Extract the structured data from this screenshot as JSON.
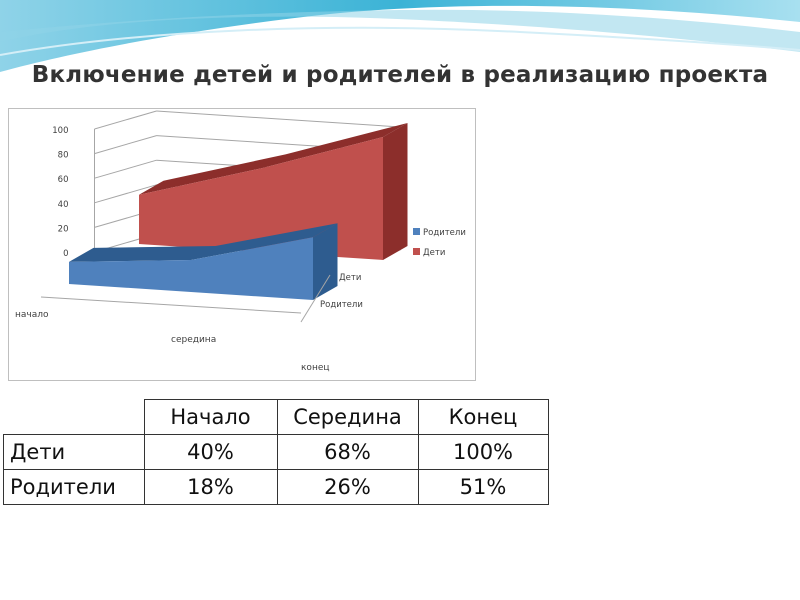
{
  "title": "Включение детей и родителей в реализацию проекта",
  "colors": {
    "children": "#c0504d",
    "parents": "#4f81bd"
  },
  "chart_data": {
    "type": "area",
    "3d": true,
    "categories": [
      "начало",
      "середина",
      "конец"
    ],
    "series": [
      {
        "name": "Родители",
        "values": [
          18,
          26,
          51
        ]
      },
      {
        "name": "Дети",
        "values": [
          40,
          68,
          100
        ]
      }
    ],
    "depth_labels": [
      "Дети",
      "Родители"
    ],
    "y_ticks": [
      "0",
      "20",
      "40",
      "60",
      "80",
      "100"
    ],
    "ylim": [
      0,
      100
    ],
    "grid": true,
    "legend_position": "right"
  },
  "table": {
    "headers": [
      "",
      "Начало",
      "Середина",
      "Конец"
    ],
    "rows": [
      {
        "label": "Дети",
        "values": [
          "40%",
          "68%",
          "100%"
        ]
      },
      {
        "label": "Родители",
        "values": [
          "18%",
          "26%",
          "51%"
        ]
      }
    ]
  }
}
